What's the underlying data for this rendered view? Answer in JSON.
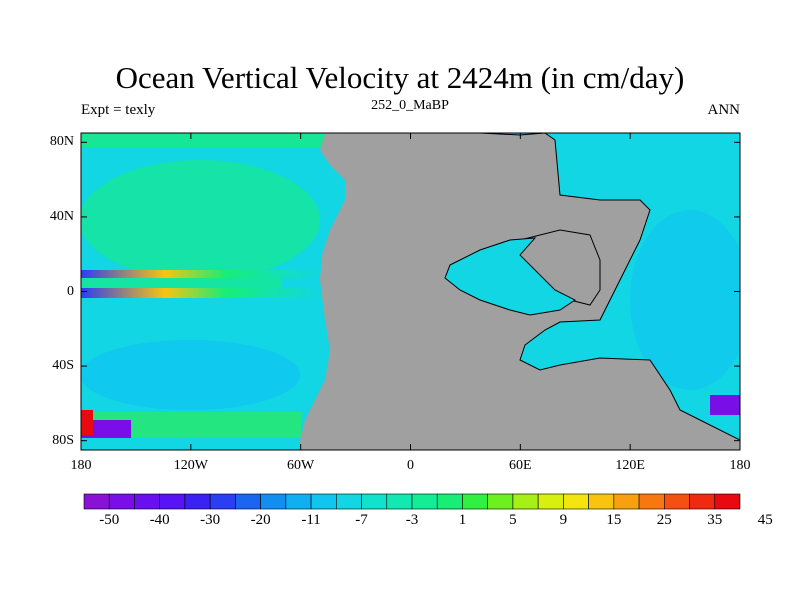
{
  "title": "Ocean Vertical Velocity at 2424m (in cm/day)",
  "subtitle": "252_0_MaBP",
  "left_label": "Expt = texly",
  "right_label": "ANN",
  "land_color": "#a0a0a0",
  "coastline_color": "#000000",
  "map": {
    "lon_range": [
      -180,
      180
    ],
    "lat_range": [
      -85,
      85
    ],
    "x_ticks": [
      {
        "lon": -180,
        "label": "180"
      },
      {
        "lon": -120,
        "label": "120W"
      },
      {
        "lon": -60,
        "label": "60W"
      },
      {
        "lon": 0,
        "label": "0"
      },
      {
        "lon": 60,
        "label": "60E"
      },
      {
        "lon": 120,
        "label": "120E"
      },
      {
        "lon": 180,
        "label": "180"
      }
    ],
    "y_ticks": [
      {
        "lat": 80,
        "label": "80N"
      },
      {
        "lat": 40,
        "label": "40N"
      },
      {
        "lat": 0,
        "label": "0"
      },
      {
        "lat": -40,
        "label": "40S"
      },
      {
        "lat": -80,
        "label": "80S"
      }
    ]
  },
  "colorbar": {
    "labels": [
      "-50",
      "-40",
      "-30",
      "-20",
      "-11",
      "-7",
      "-3",
      "1",
      "5",
      "9",
      "15",
      "25",
      "35",
      "45"
    ],
    "colors": [
      "#8a12d6",
      "#7a0ee8",
      "#6a10f0",
      "#5814f4",
      "#3a22f2",
      "#2a3ef2",
      "#1a66f0",
      "#128ef0",
      "#10aef2",
      "#10c6f0",
      "#12d6e4",
      "#10e2cc",
      "#12e8b2",
      "#14ec96",
      "#18ee76",
      "#30f040",
      "#6cf020",
      "#a6f018",
      "#d8f010",
      "#f4e410",
      "#f8c410",
      "#f8a010",
      "#f87810",
      "#f45010",
      "#f02a10",
      "#e80a10"
    ]
  }
}
